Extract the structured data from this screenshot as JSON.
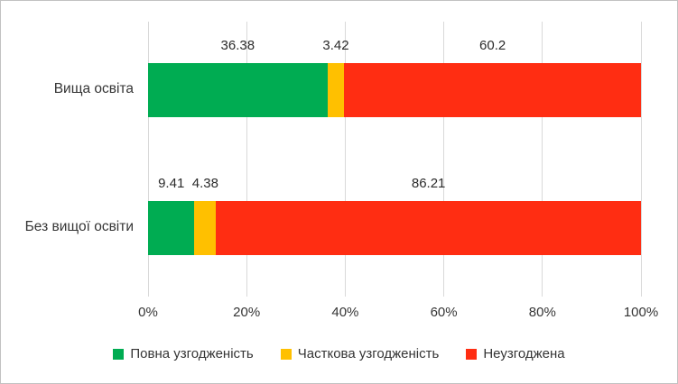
{
  "chart_data": {
    "type": "bar",
    "orientation": "horizontal",
    "stacked": true,
    "title": "",
    "xlabel": "",
    "ylabel": "",
    "xlim": [
      0,
      100
    ],
    "grid": true,
    "legend_position": "bottom",
    "categories": [
      "Вища освіта",
      "Без вищої освіти"
    ],
    "series": [
      {
        "name": "Повна узгодженість",
        "color": "#00ac52",
        "values": [
          36.38,
          9.41
        ]
      },
      {
        "name": "Часткова узгодженість",
        "color": "#ffc000",
        "values": [
          3.42,
          4.38
        ]
      },
      {
        "name": "Неузгоджена",
        "color": "#ff2d12",
        "values": [
          60.2,
          86.21
        ]
      }
    ],
    "data_labels": [
      [
        "36.38",
        "3.42",
        "60.2"
      ],
      [
        "9.41",
        "4.38",
        "86.21"
      ]
    ],
    "x_ticks": [
      "0%",
      "20%",
      "40%",
      "60%",
      "80%",
      "100%"
    ]
  },
  "colors": {
    "gridline": "#d9d9d9",
    "border": "#c2c2c2",
    "text": "#353535",
    "background": "#ffffff"
  }
}
